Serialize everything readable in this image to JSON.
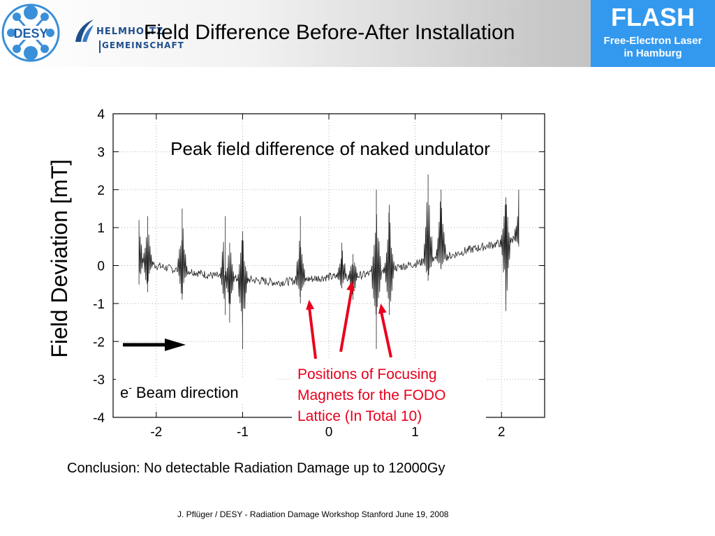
{
  "header": {
    "desy_logo_text": "DESY",
    "helmholtz_line1": "HELMHOLTZ",
    "helmholtz_line2": "GEMEINSCHAFT",
    "title": "Field Difference Before-After Installation",
    "flash_title": "FLASH",
    "flash_sub1": "Free-Electron Laser",
    "flash_sub2": "in Hamburg"
  },
  "chart_data": {
    "type": "line",
    "title": "Peak field difference of naked undulator",
    "ylabel": "Field Deviation [mT]",
    "xlabel": "",
    "xlim": [
      -2.5,
      2.5
    ],
    "ylim": [
      -4,
      4
    ],
    "x_ticks": [
      "-2",
      "-1",
      "0",
      "1",
      "2"
    ],
    "y_ticks": [
      "4",
      "3",
      "2",
      "1",
      "0",
      "-1",
      "-2",
      "-3",
      "-4"
    ],
    "grid": true,
    "baseline": [
      [
        -2.2,
        0.2
      ],
      [
        -2.1,
        0.1
      ],
      [
        -2.0,
        0.0
      ],
      [
        -1.8,
        -0.1
      ],
      [
        -1.6,
        -0.15
      ],
      [
        -1.4,
        -0.25
      ],
      [
        -1.2,
        -0.3
      ],
      [
        -1.0,
        -0.35
      ],
      [
        -0.8,
        -0.4
      ],
      [
        -0.6,
        -0.45
      ],
      [
        -0.4,
        -0.4
      ],
      [
        -0.2,
        -0.35
      ],
      [
        0.0,
        -0.3
      ],
      [
        0.2,
        -0.3
      ],
      [
        0.4,
        -0.25
      ],
      [
        0.6,
        -0.15
      ],
      [
        0.8,
        -0.05
      ],
      [
        1.0,
        0.05
      ],
      [
        1.2,
        0.15
      ],
      [
        1.4,
        0.25
      ],
      [
        1.6,
        0.4
      ],
      [
        1.8,
        0.5
      ],
      [
        2.0,
        0.6
      ],
      [
        2.2,
        0.7
      ]
    ],
    "spikes": [
      {
        "x": -2.2,
        "max": 1.2,
        "min": -0.5
      },
      {
        "x": -2.1,
        "max": 1.3,
        "min": -0.7
      },
      {
        "x": -1.7,
        "max": 1.5,
        "min": -0.9
      },
      {
        "x": -1.2,
        "max": 1.3,
        "min": -1.3
      },
      {
        "x": -1.15,
        "max": 0.6,
        "min": -1.5
      },
      {
        "x": -1.0,
        "max": 0.9,
        "min": -2.2
      },
      {
        "x": -0.33,
        "max": 1.3,
        "min": -1.0
      },
      {
        "x": 0.15,
        "max": 0.6,
        "min": -0.6
      },
      {
        "x": 0.28,
        "max": 0.3,
        "min": -0.9
      },
      {
        "x": 0.55,
        "max": 2.0,
        "min": -2.2
      },
      {
        "x": 0.7,
        "max": 1.6,
        "min": -1.3
      },
      {
        "x": 1.15,
        "max": 2.4,
        "min": -0.4
      },
      {
        "x": 1.3,
        "max": 2.0,
        "min": -0.1
      },
      {
        "x": 2.05,
        "max": 1.8,
        "min": -1.2
      },
      {
        "x": 2.2,
        "max": 2.0,
        "min": 0.5
      }
    ],
    "beam_label": "e- Beam direction",
    "beam_label_main": "e",
    "beam_label_sup": "-",
    "beam_label_rest": "Beam direction",
    "annotation": {
      "lines": [
        "Positions of Focusing",
        "Magnets for the FODO",
        "Lattice (In Total 10)"
      ],
      "color": "#e8001c",
      "arrow_targets": [
        {
          "x": -0.23,
          "y": -0.9
        },
        {
          "x": 0.27,
          "y": -0.4
        },
        {
          "x": 0.6,
          "y": -1.0
        }
      ]
    }
  },
  "conclusion": "Conclusion: No detectable Radiation Damage up to 12000Gy",
  "footer": "J. Pflüger / DESY  - Radiation Damage Workshop Stanford June 19, 2008"
}
